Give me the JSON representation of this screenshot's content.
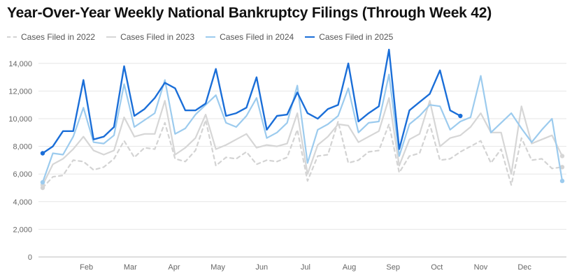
{
  "chart_data": {
    "type": "line",
    "title": "Year-Over-Year Weekly National Bankruptcy Filings (Through Week 42)",
    "xlabel": "",
    "ylabel": "",
    "ylim": [
      0,
      15000
    ],
    "y_ticks": [
      "0",
      "2,000",
      "4,000",
      "6,000",
      "8,000",
      "10,000",
      "12,000",
      "14,000"
    ],
    "month_labels": [
      "Feb",
      "Mar",
      "Apr",
      "May",
      "Jun",
      "Jul",
      "Aug",
      "Sep",
      "Oct",
      "Nov",
      "Dec"
    ],
    "x_unit": "week",
    "grid": true,
    "legend_position": "top-left",
    "series": [
      {
        "name": "Cases Filed in 2022",
        "color": "#d3d3d3",
        "dashed": true,
        "values": [
          5000,
          5800,
          5900,
          7000,
          6900,
          6300,
          6500,
          7100,
          8400,
          7200,
          7900,
          7800,
          9700,
          7100,
          6900,
          7700,
          9900,
          6600,
          7200,
          7100,
          7600,
          6700,
          7000,
          6900,
          7200,
          9200,
          5500,
          7300,
          7400,
          9800,
          6800,
          7000,
          7600,
          7700,
          9600,
          6100,
          7300,
          7500,
          9600,
          7000,
          7100,
          7600,
          8000,
          8400,
          6800,
          7800,
          5200,
          8600,
          7000,
          7100,
          6400,
          6500
        ]
      },
      {
        "name": "Cases Filed in 2023",
        "color": "#d6d6d6",
        "dashed": false,
        "values": [
          5200,
          6700,
          7100,
          7800,
          8700,
          7700,
          7400,
          7700,
          10100,
          8700,
          8900,
          8900,
          11300,
          7400,
          7900,
          8600,
          10300,
          7800,
          8100,
          8500,
          8900,
          7900,
          8100,
          8000,
          8200,
          10400,
          6000,
          8100,
          8700,
          9600,
          9500,
          8300,
          8700,
          9100,
          11500,
          6600,
          8500,
          8900,
          11300,
          8000,
          8600,
          8800,
          9400,
          10400,
          9000,
          9000,
          6000,
          10900,
          8200,
          8500,
          8800,
          7300
        ]
      },
      {
        "name": "Cases Filed in 2024",
        "color": "#9ccbee",
        "dashed": false,
        "values": [
          5400,
          7500,
          7400,
          8700,
          10800,
          8300,
          8200,
          8800,
          12500,
          9400,
          9900,
          10400,
          12800,
          8900,
          9300,
          10300,
          11000,
          11700,
          9700,
          9400,
          10200,
          11500,
          8600,
          9000,
          9700,
          12400,
          6800,
          9200,
          9600,
          10200,
          12200,
          9000,
          9700,
          9800,
          13200,
          7300,
          9600,
          10200,
          11000,
          10900,
          9200,
          9800,
          10100,
          13100,
          9000,
          9700,
          10400,
          9300,
          8300,
          9200,
          10000,
          5500
        ]
      },
      {
        "name": "Cases Filed in 2025",
        "color": "#1a6ed8",
        "dashed": false,
        "values": [
          7500,
          8000,
          9100,
          9100,
          12800,
          8500,
          8700,
          9400,
          13800,
          10200,
          10700,
          11500,
          12600,
          12200,
          10600,
          10600,
          11100,
          13600,
          10200,
          10400,
          10800,
          13000,
          9200,
          10200,
          10300,
          11900,
          10400,
          10000,
          10700,
          11000,
          14000,
          9800,
          10400,
          10900,
          15000,
          7800,
          10600,
          11200,
          11800,
          13500,
          10600,
          10200
        ]
      }
    ]
  }
}
